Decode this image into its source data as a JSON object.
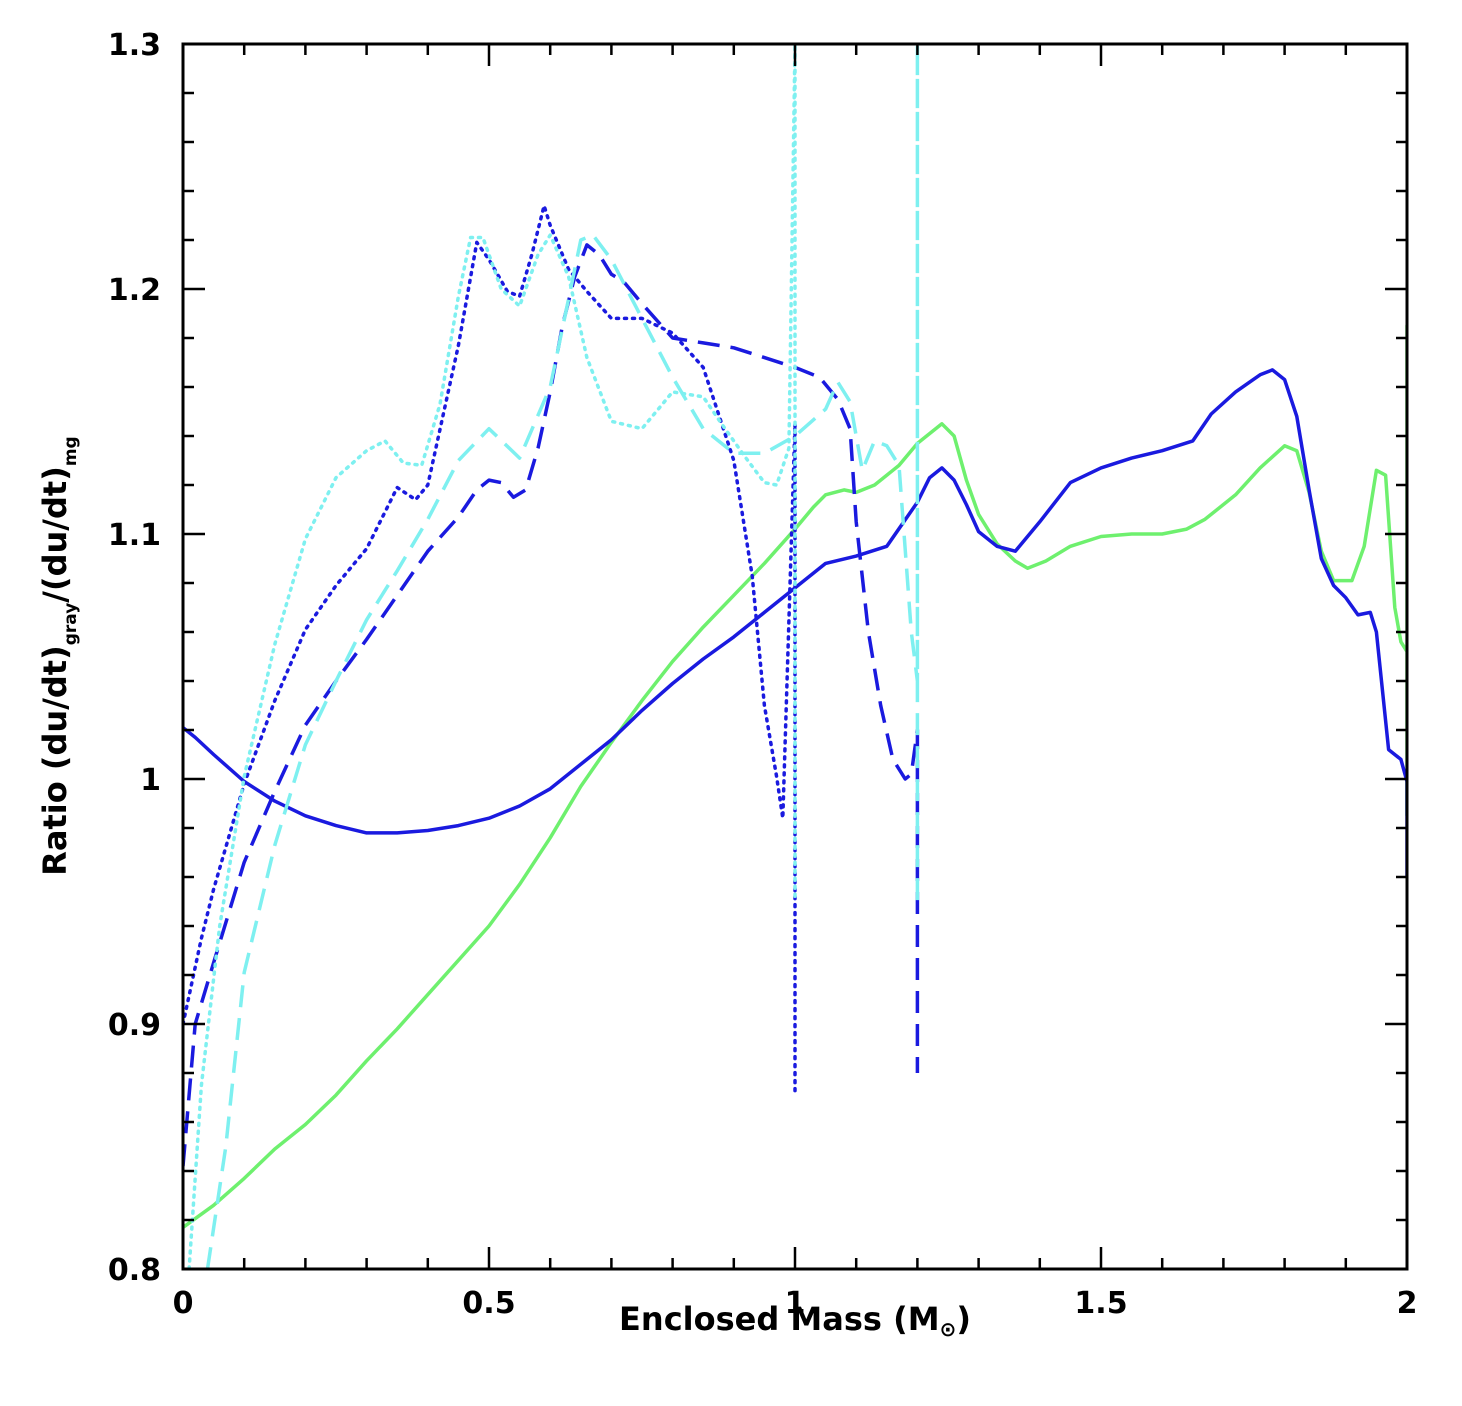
{
  "chart_data": {
    "type": "line",
    "title": "",
    "xlabel": {
      "main": "Enclosed Mass (M",
      "symbol": "⊙",
      "close": ")"
    },
    "ylabel": {
      "p1": "Ratio (du/dt)",
      "sub1": "gray",
      "p2": "/(du/dt)",
      "sub2": "mg"
    },
    "xlim": [
      0,
      2
    ],
    "ylim": [
      0.8,
      1.3
    ],
    "xticks": [
      0,
      0.5,
      1,
      1.5,
      2
    ],
    "xtick_labels": [
      "0",
      "0.5",
      "1",
      "1.5",
      "2"
    ],
    "yticks": [
      0.8,
      0.9,
      1,
      1.1,
      1.2,
      1.3
    ],
    "ytick_labels": [
      "0.8",
      "0.9",
      "1",
      "1.1",
      "1.2",
      "1.3"
    ],
    "grid": false,
    "colors": {
      "blue": "#1a1adf",
      "cyan": "#7ef0f0",
      "green": "#6ef06e"
    },
    "series": [
      {
        "name": "green-solid",
        "color": "#6ef06e",
        "style": "solid",
        "points": [
          [
            0.0,
            0.817
          ],
          [
            0.05,
            0.826
          ],
          [
            0.1,
            0.837
          ],
          [
            0.15,
            0.849
          ],
          [
            0.2,
            0.859
          ],
          [
            0.25,
            0.871
          ],
          [
            0.3,
            0.885
          ],
          [
            0.35,
            0.898
          ],
          [
            0.4,
            0.912
          ],
          [
            0.45,
            0.926
          ],
          [
            0.5,
            0.94
          ],
          [
            0.55,
            0.957
          ],
          [
            0.6,
            0.976
          ],
          [
            0.65,
            0.997
          ],
          [
            0.7,
            1.015
          ],
          [
            0.75,
            1.032
          ],
          [
            0.8,
            1.048
          ],
          [
            0.85,
            1.062
          ],
          [
            0.9,
            1.075
          ],
          [
            0.95,
            1.088
          ],
          [
            1.0,
            1.102
          ],
          [
            1.03,
            1.111
          ],
          [
            1.05,
            1.116
          ],
          [
            1.08,
            1.118
          ],
          [
            1.1,
            1.117
          ],
          [
            1.13,
            1.12
          ],
          [
            1.17,
            1.128
          ],
          [
            1.2,
            1.137
          ],
          [
            1.24,
            1.145
          ],
          [
            1.26,
            1.14
          ],
          [
            1.28,
            1.122
          ],
          [
            1.3,
            1.108
          ],
          [
            1.33,
            1.096
          ],
          [
            1.36,
            1.089
          ],
          [
            1.38,
            1.086
          ],
          [
            1.41,
            1.089
          ],
          [
            1.45,
            1.095
          ],
          [
            1.5,
            1.099
          ],
          [
            1.55,
            1.1
          ],
          [
            1.6,
            1.1
          ],
          [
            1.64,
            1.102
          ],
          [
            1.67,
            1.106
          ],
          [
            1.72,
            1.116
          ],
          [
            1.76,
            1.127
          ],
          [
            1.8,
            1.136
          ],
          [
            1.82,
            1.134
          ],
          [
            1.84,
            1.117
          ],
          [
            1.86,
            1.093
          ],
          [
            1.88,
            1.081
          ],
          [
            1.91,
            1.081
          ],
          [
            1.93,
            1.095
          ],
          [
            1.95,
            1.126
          ],
          [
            1.965,
            1.124
          ],
          [
            1.98,
            1.07
          ],
          [
            1.99,
            1.056
          ],
          [
            2.0,
            1.052
          ],
          [
            2.0,
            1.185
          ],
          [
            2.0,
            0.985
          ]
        ]
      },
      {
        "name": "blue-solid",
        "color": "#1a1adf",
        "style": "solid",
        "points": [
          [
            0.0,
            1.021
          ],
          [
            0.02,
            1.017
          ],
          [
            0.05,
            1.01
          ],
          [
            0.1,
            0.999
          ],
          [
            0.15,
            0.991
          ],
          [
            0.2,
            0.985
          ],
          [
            0.25,
            0.981
          ],
          [
            0.3,
            0.978
          ],
          [
            0.35,
            0.978
          ],
          [
            0.4,
            0.979
          ],
          [
            0.45,
            0.981
          ],
          [
            0.5,
            0.984
          ],
          [
            0.55,
            0.989
          ],
          [
            0.6,
            0.996
          ],
          [
            0.65,
            1.006
          ],
          [
            0.7,
            1.016
          ],
          [
            0.75,
            1.028
          ],
          [
            0.8,
            1.039
          ],
          [
            0.85,
            1.049
          ],
          [
            0.9,
            1.058
          ],
          [
            0.95,
            1.068
          ],
          [
            1.0,
            1.078
          ],
          [
            1.05,
            1.088
          ],
          [
            1.1,
            1.091
          ],
          [
            1.15,
            1.095
          ],
          [
            1.2,
            1.113
          ],
          [
            1.22,
            1.123
          ],
          [
            1.24,
            1.127
          ],
          [
            1.26,
            1.122
          ],
          [
            1.28,
            1.112
          ],
          [
            1.3,
            1.101
          ],
          [
            1.33,
            1.095
          ],
          [
            1.36,
            1.093
          ],
          [
            1.4,
            1.105
          ],
          [
            1.45,
            1.121
          ],
          [
            1.5,
            1.127
          ],
          [
            1.55,
            1.131
          ],
          [
            1.6,
            1.134
          ],
          [
            1.65,
            1.138
          ],
          [
            1.68,
            1.149
          ],
          [
            1.72,
            1.158
          ],
          [
            1.76,
            1.165
          ],
          [
            1.78,
            1.167
          ],
          [
            1.8,
            1.163
          ],
          [
            1.82,
            1.148
          ],
          [
            1.84,
            1.118
          ],
          [
            1.86,
            1.09
          ],
          [
            1.88,
            1.079
          ],
          [
            1.9,
            1.074
          ],
          [
            1.92,
            1.067
          ],
          [
            1.94,
            1.068
          ],
          [
            1.95,
            1.06
          ],
          [
            1.97,
            1.012
          ],
          [
            1.99,
            1.008
          ],
          [
            2.0,
            0.999
          ],
          [
            2.0,
            0.96
          ]
        ]
      },
      {
        "name": "blue-dashed",
        "color": "#1a1adf",
        "style": "dashed",
        "points": [
          [
            0.0,
            0.842
          ],
          [
            0.02,
            0.9
          ],
          [
            0.05,
            0.925
          ],
          [
            0.1,
            0.966
          ],
          [
            0.15,
            0.995
          ],
          [
            0.2,
            1.022
          ],
          [
            0.25,
            1.04
          ],
          [
            0.3,
            1.057
          ],
          [
            0.35,
            1.075
          ],
          [
            0.4,
            1.093
          ],
          [
            0.45,
            1.107
          ],
          [
            0.48,
            1.118
          ],
          [
            0.5,
            1.122
          ],
          [
            0.52,
            1.121
          ],
          [
            0.54,
            1.115
          ],
          [
            0.56,
            1.118
          ],
          [
            0.58,
            1.135
          ],
          [
            0.6,
            1.158
          ],
          [
            0.62,
            1.185
          ],
          [
            0.64,
            1.205
          ],
          [
            0.66,
            1.218
          ],
          [
            0.68,
            1.214
          ],
          [
            0.7,
            1.206
          ],
          [
            0.72,
            1.203
          ],
          [
            0.75,
            1.194
          ],
          [
            0.8,
            1.18
          ],
          [
            0.85,
            1.178
          ],
          [
            0.9,
            1.176
          ],
          [
            0.95,
            1.172
          ],
          [
            1.0,
            1.168
          ],
          [
            1.04,
            1.164
          ],
          [
            1.07,
            1.155
          ],
          [
            1.09,
            1.143
          ],
          [
            1.1,
            1.105
          ],
          [
            1.12,
            1.06
          ],
          [
            1.14,
            1.03
          ],
          [
            1.16,
            1.008
          ],
          [
            1.18,
            1.0
          ],
          [
            1.19,
            1.002
          ],
          [
            1.2,
            1.02
          ],
          [
            1.2,
            0.88
          ]
        ]
      },
      {
        "name": "blue-dotted",
        "color": "#1a1adf",
        "style": "dotted",
        "points": [
          [
            0.0,
            0.9
          ],
          [
            0.03,
            0.935
          ],
          [
            0.05,
            0.955
          ],
          [
            0.1,
            0.998
          ],
          [
            0.15,
            1.032
          ],
          [
            0.2,
            1.061
          ],
          [
            0.25,
            1.079
          ],
          [
            0.3,
            1.094
          ],
          [
            0.33,
            1.109
          ],
          [
            0.35,
            1.119
          ],
          [
            0.38,
            1.114
          ],
          [
            0.4,
            1.12
          ],
          [
            0.45,
            1.177
          ],
          [
            0.48,
            1.219
          ],
          [
            0.5,
            1.212
          ],
          [
            0.53,
            1.199
          ],
          [
            0.55,
            1.197
          ],
          [
            0.57,
            1.214
          ],
          [
            0.59,
            1.234
          ],
          [
            0.6,
            1.226
          ],
          [
            0.63,
            1.208
          ],
          [
            0.66,
            1.199
          ],
          [
            0.7,
            1.188
          ],
          [
            0.75,
            1.188
          ],
          [
            0.8,
            1.182
          ],
          [
            0.85,
            1.168
          ],
          [
            0.9,
            1.13
          ],
          [
            0.93,
            1.083
          ],
          [
            0.95,
            1.03
          ],
          [
            0.97,
            1.001
          ],
          [
            0.98,
            0.984
          ],
          [
            1.0,
            1.145
          ],
          [
            1.0,
            0.872
          ]
        ]
      },
      {
        "name": "cyan-dashed",
        "color": "#7ef0f0",
        "style": "dashed",
        "points": [
          [
            0.04,
            0.8
          ],
          [
            0.07,
            0.85
          ],
          [
            0.1,
            0.921
          ],
          [
            0.15,
            0.973
          ],
          [
            0.2,
            1.014
          ],
          [
            0.25,
            1.04
          ],
          [
            0.3,
            1.065
          ],
          [
            0.35,
            1.085
          ],
          [
            0.4,
            1.106
          ],
          [
            0.45,
            1.13
          ],
          [
            0.5,
            1.143
          ],
          [
            0.55,
            1.131
          ],
          [
            0.6,
            1.16
          ],
          [
            0.63,
            1.196
          ],
          [
            0.65,
            1.22
          ],
          [
            0.67,
            1.222
          ],
          [
            0.7,
            1.212
          ],
          [
            0.75,
            1.188
          ],
          [
            0.8,
            1.164
          ],
          [
            0.85,
            1.143
          ],
          [
            0.9,
            1.133
          ],
          [
            0.95,
            1.133
          ],
          [
            1.0,
            1.14
          ],
          [
            1.05,
            1.151
          ],
          [
            1.07,
            1.162
          ],
          [
            1.09,
            1.154
          ],
          [
            1.11,
            1.126
          ],
          [
            1.13,
            1.138
          ],
          [
            1.15,
            1.136
          ],
          [
            1.17,
            1.128
          ],
          [
            1.19,
            1.06
          ],
          [
            1.2,
            1.04
          ],
          [
            1.2,
            1.3
          ],
          [
            1.2,
            0.95
          ]
        ]
      },
      {
        "name": "cyan-dotted",
        "color": "#7ef0f0",
        "style": "dotted",
        "points": [
          [
            0.01,
            0.8
          ],
          [
            0.03,
            0.875
          ],
          [
            0.06,
            0.94
          ],
          [
            0.1,
            1.001
          ],
          [
            0.15,
            1.055
          ],
          [
            0.2,
            1.098
          ],
          [
            0.25,
            1.123
          ],
          [
            0.3,
            1.134
          ],
          [
            0.33,
            1.138
          ],
          [
            0.36,
            1.129
          ],
          [
            0.39,
            1.128
          ],
          [
            0.42,
            1.153
          ],
          [
            0.45,
            1.197
          ],
          [
            0.47,
            1.221
          ],
          [
            0.49,
            1.221
          ],
          [
            0.52,
            1.2
          ],
          [
            0.55,
            1.193
          ],
          [
            0.58,
            1.214
          ],
          [
            0.6,
            1.222
          ],
          [
            0.63,
            1.205
          ],
          [
            0.66,
            1.172
          ],
          [
            0.7,
            1.146
          ],
          [
            0.75,
            1.143
          ],
          [
            0.8,
            1.158
          ],
          [
            0.85,
            1.156
          ],
          [
            0.88,
            1.145
          ],
          [
            0.92,
            1.131
          ],
          [
            0.95,
            1.121
          ],
          [
            0.97,
            1.12
          ],
          [
            0.99,
            1.135
          ],
          [
            1.0,
            1.3
          ],
          [
            1.0,
            0.95
          ]
        ]
      }
    ]
  }
}
